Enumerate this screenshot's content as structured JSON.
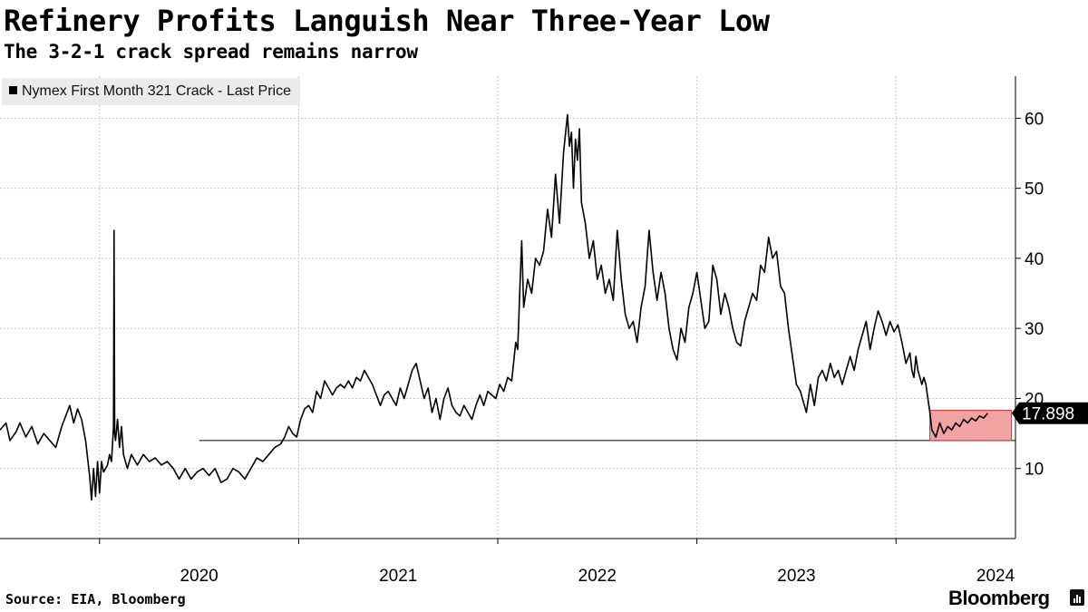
{
  "header": {
    "title": "Refinery Profits Languish Near Three-Year Low",
    "subtitle": "The 3-2-1 crack spread remains narrow"
  },
  "legend": {
    "label": "Nymex First Month 321 Crack - Last Price"
  },
  "footer": {
    "source": "Source: EIA, Bloomberg",
    "brand": "Bloomberg"
  },
  "colors": {
    "line": "#000000",
    "highlight_fill": "#f4a3a3",
    "highlight_stroke": "#e03030",
    "grid": "#c8c8c8"
  },
  "chart_data": {
    "type": "line",
    "title": "Refinery Profits Languish Near Three-Year Low",
    "subtitle": "The 3-2-1 crack spread remains narrow",
    "series_name": "Nymex First Month 321 Crack - Last Price",
    "xlabel": "",
    "ylabel": "",
    "x_ticks": [
      "2020",
      "2021",
      "2022",
      "2023",
      "2024"
    ],
    "x_range": [
      2019.5,
      2024.6
    ],
    "y_ticks": [
      10,
      20,
      30,
      40,
      50,
      60
    ],
    "ylim": [
      0,
      66
    ],
    "last_value_label": "17.898",
    "last_value": 17.898,
    "reference_line": 14.0,
    "highlight_region": {
      "x_start": 2024.17,
      "x_end": 2024.58,
      "y_low": 14.0,
      "y_high": 18.3
    },
    "values": [
      [
        2019.5,
        15.5
      ],
      [
        2019.53,
        16.5
      ],
      [
        2019.55,
        14.0
      ],
      [
        2019.58,
        15.2
      ],
      [
        2019.6,
        16.5
      ],
      [
        2019.63,
        14.5
      ],
      [
        2019.66,
        16.0
      ],
      [
        2019.69,
        13.5
      ],
      [
        2019.72,
        15.0
      ],
      [
        2019.75,
        14.0
      ],
      [
        2019.78,
        13.0
      ],
      [
        2019.81,
        16.0
      ],
      [
        2019.83,
        17.5
      ],
      [
        2019.85,
        19.0
      ],
      [
        2019.87,
        16.5
      ],
      [
        2019.89,
        18.5
      ],
      [
        2019.91,
        17.0
      ],
      [
        2019.93,
        14.0
      ],
      [
        2019.95,
        9.0
      ],
      [
        2019.96,
        5.5
      ],
      [
        2019.97,
        10.0
      ],
      [
        2019.98,
        6.0
      ],
      [
        2019.99,
        11.0
      ],
      [
        2020.0,
        6.5
      ],
      [
        2020.01,
        11.0
      ],
      [
        2020.02,
        9.5
      ],
      [
        2020.04,
        10.5
      ],
      [
        2020.05,
        12.0
      ],
      [
        2020.06,
        11.0
      ],
      [
        2020.07,
        16.0
      ],
      [
        2020.073,
        44.0
      ],
      [
        2020.076,
        15.0
      ],
      [
        2020.08,
        14.0
      ],
      [
        2020.09,
        17.0
      ],
      [
        2020.1,
        13.0
      ],
      [
        2020.11,
        16.0
      ],
      [
        2020.12,
        12.0
      ],
      [
        2020.14,
        10.0
      ],
      [
        2020.16,
        12.0
      ],
      [
        2020.19,
        10.5
      ],
      [
        2020.22,
        12.0
      ],
      [
        2020.25,
        11.0
      ],
      [
        2020.28,
        11.5
      ],
      [
        2020.31,
        10.5
      ],
      [
        2020.34,
        11.0
      ],
      [
        2020.37,
        10.0
      ],
      [
        2020.4,
        8.5
      ],
      [
        2020.43,
        10.0
      ],
      [
        2020.46,
        8.5
      ],
      [
        2020.49,
        9.5
      ],
      [
        2020.52,
        10.0
      ],
      [
        2020.55,
        9.0
      ],
      [
        2020.58,
        10.0
      ],
      [
        2020.61,
        8.0
      ],
      [
        2020.64,
        8.5
      ],
      [
        2020.67,
        10.0
      ],
      [
        2020.7,
        9.5
      ],
      [
        2020.73,
        8.5
      ],
      [
        2020.76,
        10.0
      ],
      [
        2020.79,
        11.5
      ],
      [
        2020.82,
        11.0
      ],
      [
        2020.85,
        12.0
      ],
      [
        2020.88,
        13.0
      ],
      [
        2020.91,
        13.5
      ],
      [
        2020.93,
        14.5
      ],
      [
        2020.95,
        16.0
      ],
      [
        2020.97,
        15.0
      ],
      [
        2020.99,
        14.5
      ],
      [
        2021.01,
        17.0
      ],
      [
        2021.03,
        18.5
      ],
      [
        2021.05,
        19.0
      ],
      [
        2021.07,
        18.0
      ],
      [
        2021.09,
        21.0
      ],
      [
        2021.11,
        20.0
      ],
      [
        2021.13,
        22.5
      ],
      [
        2021.15,
        21.5
      ],
      [
        2021.17,
        20.5
      ],
      [
        2021.19,
        21.5
      ],
      [
        2021.21,
        22.0
      ],
      [
        2021.23,
        21.5
      ],
      [
        2021.25,
        22.5
      ],
      [
        2021.27,
        21.5
      ],
      [
        2021.29,
        23.0
      ],
      [
        2021.31,
        22.5
      ],
      [
        2021.33,
        24.0
      ],
      [
        2021.35,
        23.0
      ],
      [
        2021.37,
        22.0
      ],
      [
        2021.39,
        20.5
      ],
      [
        2021.41,
        19.0
      ],
      [
        2021.43,
        20.5
      ],
      [
        2021.45,
        21.0
      ],
      [
        2021.47,
        20.0
      ],
      [
        2021.49,
        19.0
      ],
      [
        2021.51,
        21.5
      ],
      [
        2021.53,
        20.0
      ],
      [
        2021.55,
        22.0
      ],
      [
        2021.57,
        24.0
      ],
      [
        2021.59,
        25.0
      ],
      [
        2021.61,
        22.5
      ],
      [
        2021.63,
        20.0
      ],
      [
        2021.65,
        21.5
      ],
      [
        2021.67,
        18.0
      ],
      [
        2021.69,
        20.0
      ],
      [
        2021.71,
        17.0
      ],
      [
        2021.73,
        20.0
      ],
      [
        2021.75,
        21.5
      ],
      [
        2021.77,
        19.0
      ],
      [
        2021.79,
        18.0
      ],
      [
        2021.81,
        17.5
      ],
      [
        2021.83,
        19.0
      ],
      [
        2021.85,
        18.0
      ],
      [
        2021.87,
        17.0
      ],
      [
        2021.89,
        19.0
      ],
      [
        2021.91,
        20.5
      ],
      [
        2021.93,
        19.0
      ],
      [
        2021.95,
        21.0
      ],
      [
        2021.97,
        20.5
      ],
      [
        2021.99,
        20.0
      ],
      [
        2022.01,
        22.0
      ],
      [
        2022.03,
        21.0
      ],
      [
        2022.05,
        23.0
      ],
      [
        2022.07,
        22.5
      ],
      [
        2022.09,
        28.0
      ],
      [
        2022.1,
        27.0
      ],
      [
        2022.11,
        35.0
      ],
      [
        2022.12,
        42.5
      ],
      [
        2022.13,
        33.0
      ],
      [
        2022.15,
        37.0
      ],
      [
        2022.17,
        35.0
      ],
      [
        2022.19,
        40.0
      ],
      [
        2022.21,
        39.0
      ],
      [
        2022.23,
        41.0
      ],
      [
        2022.25,
        47.0
      ],
      [
        2022.27,
        43.0
      ],
      [
        2022.29,
        52.0
      ],
      [
        2022.31,
        45.0
      ],
      [
        2022.33,
        55.0
      ],
      [
        2022.35,
        60.5
      ],
      [
        2022.36,
        56.0
      ],
      [
        2022.37,
        58.0
      ],
      [
        2022.38,
        50.0
      ],
      [
        2022.39,
        57.0
      ],
      [
        2022.4,
        54.0
      ],
      [
        2022.41,
        58.5
      ],
      [
        2022.42,
        48.0
      ],
      [
        2022.44,
        45.0
      ],
      [
        2022.46,
        40.0
      ],
      [
        2022.48,
        42.5
      ],
      [
        2022.5,
        37.0
      ],
      [
        2022.52,
        39.0
      ],
      [
        2022.54,
        35.0
      ],
      [
        2022.56,
        37.0
      ],
      [
        2022.58,
        34.0
      ],
      [
        2022.6,
        44.0
      ],
      [
        2022.62,
        37.0
      ],
      [
        2022.64,
        32.0
      ],
      [
        2022.66,
        30.0
      ],
      [
        2022.68,
        31.0
      ],
      [
        2022.7,
        28.0
      ],
      [
        2022.72,
        33.0
      ],
      [
        2022.74,
        36.0
      ],
      [
        2022.76,
        44.0
      ],
      [
        2022.78,
        38.0
      ],
      [
        2022.8,
        34.0
      ],
      [
        2022.82,
        38.0
      ],
      [
        2022.84,
        35.0
      ],
      [
        2022.86,
        30.0
      ],
      [
        2022.88,
        27.0
      ],
      [
        2022.9,
        25.5
      ],
      [
        2022.92,
        30.0
      ],
      [
        2022.94,
        28.0
      ],
      [
        2022.96,
        33.0
      ],
      [
        2022.98,
        35.0
      ],
      [
        2023.0,
        38.0
      ],
      [
        2023.02,
        34.0
      ],
      [
        2023.04,
        30.0
      ],
      [
        2023.06,
        31.0
      ],
      [
        2023.08,
        39.0
      ],
      [
        2023.1,
        37.0
      ],
      [
        2023.12,
        32.0
      ],
      [
        2023.14,
        35.0
      ],
      [
        2023.16,
        33.0
      ],
      [
        2023.18,
        30.0
      ],
      [
        2023.2,
        28.0
      ],
      [
        2023.22,
        27.5
      ],
      [
        2023.24,
        31.0
      ],
      [
        2023.26,
        33.0
      ],
      [
        2023.28,
        35.0
      ],
      [
        2023.3,
        34.0
      ],
      [
        2023.32,
        39.0
      ],
      [
        2023.34,
        38.0
      ],
      [
        2023.36,
        43.0
      ],
      [
        2023.38,
        40.0
      ],
      [
        2023.4,
        41.0
      ],
      [
        2023.42,
        36.0
      ],
      [
        2023.44,
        35.0
      ],
      [
        2023.46,
        30.0
      ],
      [
        2023.48,
        26.0
      ],
      [
        2023.5,
        22.0
      ],
      [
        2023.52,
        21.0
      ],
      [
        2023.54,
        19.0
      ],
      [
        2023.55,
        18.0
      ],
      [
        2023.57,
        22.0
      ],
      [
        2023.59,
        19.0
      ],
      [
        2023.61,
        23.0
      ],
      [
        2023.63,
        24.0
      ],
      [
        2023.65,
        22.5
      ],
      [
        2023.67,
        25.0
      ],
      [
        2023.69,
        23.0
      ],
      [
        2023.71,
        24.0
      ],
      [
        2023.73,
        22.0
      ],
      [
        2023.75,
        24.0
      ],
      [
        2023.77,
        26.0
      ],
      [
        2023.79,
        24.0
      ],
      [
        2023.81,
        27.0
      ],
      [
        2023.83,
        29.0
      ],
      [
        2023.85,
        31.0
      ],
      [
        2023.87,
        27.0
      ],
      [
        2023.89,
        30.0
      ],
      [
        2023.91,
        32.5
      ],
      [
        2023.93,
        31.0
      ],
      [
        2023.95,
        29.0
      ],
      [
        2023.97,
        31.0
      ],
      [
        2023.99,
        29.5
      ],
      [
        2024.01,
        30.5
      ],
      [
        2024.03,
        28.0
      ],
      [
        2024.05,
        25.0
      ],
      [
        2024.07,
        26.5
      ],
      [
        2024.08,
        24.0
      ],
      [
        2024.09,
        23.0
      ],
      [
        2024.1,
        26.0
      ],
      [
        2024.11,
        24.0
      ],
      [
        2024.13,
        22.0
      ],
      [
        2024.14,
        23.0
      ],
      [
        2024.15,
        22.0
      ],
      [
        2024.16,
        20.0
      ],
      [
        2024.17,
        18.0
      ],
      [
        2024.18,
        15.5
      ],
      [
        2024.2,
        14.5
      ],
      [
        2024.22,
        16.5
      ],
      [
        2024.24,
        15.0
      ],
      [
        2024.26,
        16.0
      ],
      [
        2024.28,
        15.5
      ],
      [
        2024.3,
        16.5
      ],
      [
        2024.32,
        16.0
      ],
      [
        2024.34,
        17.0
      ],
      [
        2024.36,
        16.5
      ],
      [
        2024.38,
        17.2
      ],
      [
        2024.4,
        16.8
      ],
      [
        2024.42,
        17.5
      ],
      [
        2024.44,
        17.2
      ],
      [
        2024.46,
        17.9
      ]
    ]
  }
}
